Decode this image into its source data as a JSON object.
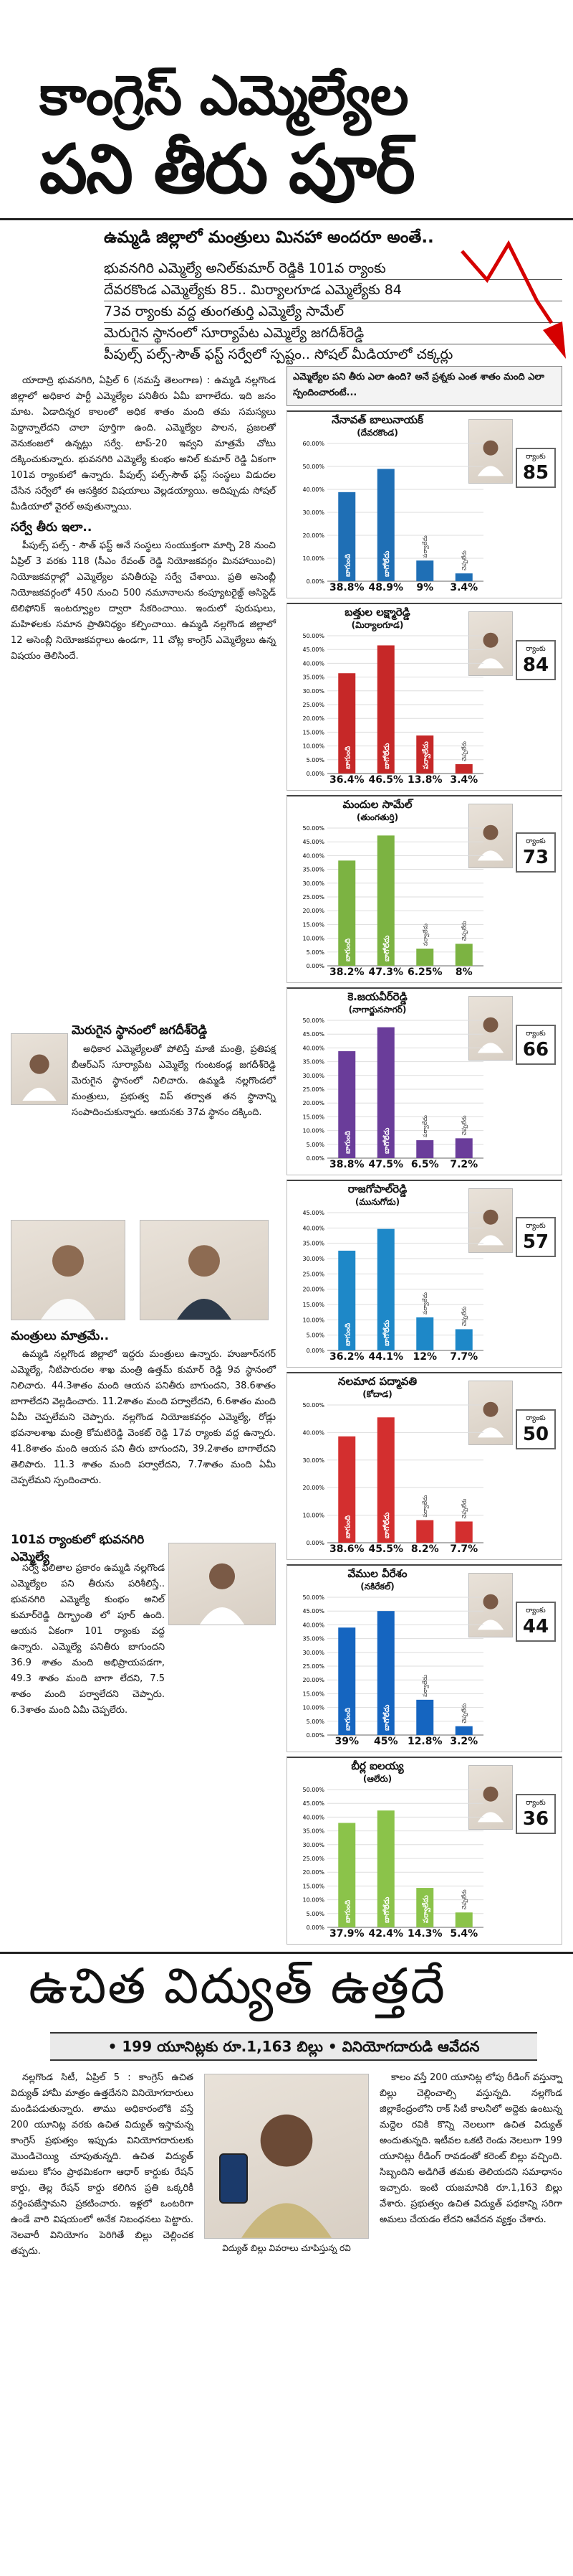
{
  "headline": {
    "line1": "కాంగ్రెస్ ఎమ్మెల్యేల",
    "line2": "పని తీరు పూర్",
    "subheadline": "ఉమ్మడి జిల్లాలో మంత్రులు మినహా అందరూ అంతే..",
    "lead": [
      "భువనగిరి ఎమ్మెల్యే అనిల్‌కుమార్ రెడ్డికి 101వ ర్యాంకు",
      "దేవరకొండ ఎమ్మెల్యేకు 85.. మిర్యాలగూడ ఎమ్మెల్యేకు 84",
      "73వ ర్యాంకు వద్ద తుంగతుర్తి ఎమ్మెల్యే సామేల్",
      "మెరుగైన స్థానంలో సూర్యాపేట ఎమ్మెల్యే జగదీశ్‌రెడ్డి",
      "పీపుల్స్ పల్స్-సౌత్ ఫస్ట్ సర్వేలో స్పష్టం.. సోషల్ మీడియాలో చక్కర్లు"
    ]
  },
  "article": {
    "dateline": "యాదాద్రి భువనగిరి, ఏప్రిల్ 6 (నమస్తే తెలంగాణ) : ఉమ్మడి నల్లగొండ జిల్లాలో అధికార పార్టీ ఎమ్మెల్యేల పనితీరు ఏమీ బాగాలేదు. ఇది జనం మాట. ఏడాదిన్నర కాలంలో అధిక శాతం మంది తమ సమస్యలు పెద్దాన్నాలేదని చాలా పూర్తిగా ఉంది. ఎమ్మెల్యేల పాలన, ప్రజలతో వెనుకంజలో ఉన్నట్లు సర్వే. టాప్-20 ఇవ్వని మాత్రమే చోటు దక్కించుకున్నారు. భువనగిరి ఎమ్మెల్యే కుంభం అనిల్ కుమార్ రెడ్డి ఏకంగా 101వ ర్యాంకులో ఉన్నారు. పీపుల్స్ పల్స్-సౌత్ ఫస్ట్ సంస్థలు విడుదల చేసిన సర్వేలో ఈ ఆసక్తికర విషయాలు వెల్లడయ్యాయి. అదిప్పుడు సోషల్ మీడియాలో వైరల్ అవుతున్నాయి.",
    "survey_heading": "సర్వే తీరు ఇలా..",
    "survey_text": "పీపుల్స్ పల్స్ - సౌత్ ఫస్ట్ అనే సంస్థలు సంయుక్తంగా మార్చి 28 నుంచి ఏప్రిల్ 3 వరకు 118 (సీఎం రేవంత్ రెడ్డి నియోజకవర్గం మినహాయించి) నియోజకవర్గాల్లో ఎమ్మెల్యేల పనితీరుపై సర్వే చేశాయి. ప్రతి అసెంబ్లీ నియోజకవర్గంలో 450 నుంచి 500 నమూనాలను కంప్యూటరైజ్డ్ అసిస్టెడ్ టెలిఫోనిక్ ఇంటర్వ్యూల ద్వారా సేకరించాయి. ఇందులో పురుషులు, మహిళలకు సమాన ప్రాతినిధ్యం కల్పించాయి. ఉమ్మడి నల్లగొండ జిల్లాలో 12 అసెంబ్లీ నియోజకవర్గాలు ఉండగా, 11 చోట్ల కాంగ్రెస్ ఎమ్మెల్యేలు ఉన్న విషయం తెలిసిందే.",
    "jagadish_heading": "మెరుగైన స్థానంలో జగదీశ్‌రెడ్డి",
    "jagadish_text": "అధికార ఎమ్మెల్యేలతో పోలిస్తే మాజీ మంత్రి, ప్రతిపక్ష బీఆర్‌ఎస్ సూర్యాపేట ఎమ్మెల్యే గుంటకండ్ల జగదీశ్‌రెడ్డి మెరుగైన స్థానంలో నిలిచారు. ఉమ్మడి నల్లగొండలో మంత్రులు, ప్రభుత్వ విప్ తర్వాత తన స్థానాన్ని సంపాదించుకున్నారు. ఆయనకు 37వ స్థానం దక్కింది.",
    "ministers_heading": "మంత్రులు మాత్రమే..",
    "ministers_text": "ఉమ్మడి నల్లగొండ జిల్లాలో ఇద్దరు మంత్రులు ఉన్నారు. హుజూర్‌నగర్ ఎమ్మెల్యే, నీటిపారుదల శాఖ మంత్రి ఉత్తమ్ కుమార్ రెడ్డి 9వ స్థానంలో నిలిచారు. 44.3శాతం మంది ఆయన పనితీరు బాగుందని, 38.6శాతం బాగాలేదని వెల్లడించారు. 11.2శాతం మంది పర్వాలేదని, 6.6శాతం మంది ఏమీ చెప్పలేమని చెప్పారు. నల్లగొండ నియోజకవర్గం ఎమ్మెల్యే, రోడ్లు భవనాలశాఖ మంత్రి కోమటిరెడ్డి వెంకట్ రెడ్డి 17వ ర్యాంకు వద్ద ఉన్నారు. 41.8శాతం మంది ఆయన పని తీరు బాగుందని, 39.2శాతం బాగాలేదని తెలిపారు. 11.3 శాతం మంది పర్వాలేదని, 7.7శాతం మంది ఏమీ చెప్పలేమని స్పందించారు.",
    "bhuvanagiri_heading": "101వ ర్యాంకులో భువనగిరి ఎమ్మెల్యే",
    "bhuvanagiri_text": "సర్వే ఫలితాల ప్రకారం ఉమ్మడి నల్లగొండ ఎమ్మెల్యేల పని తీరును పరిశీలిస్తే.. భువనగిరి ఎమ్మెల్యే కుంభం అనిల్ కుమార్‌రెడ్డి దిగ్భ్రాంతి లో పూర్ ఉంది. ఆయన ఏకంగా 101 ర్యాంకు వద్ద ఉన్నారు. ఎమ్మెల్యే పనితీరు బాగుందని 36.9 శాతం మంది అభిప్రాయపడగా, 49.3 శాతం మంది బాగా లేదని, 7.5 శాతం మంది పర్వాలేదని చెప్పారు. 6.3శాతం మంది ఏమీ చెప్పలేరు."
  },
  "charts_header": "ఎమ్మెల్యేల పని తీరు ఎలా ఉంది? అనే ప్రశ్నకు ఎంత శాతం మంది ఎలా స్పందించారంటే...",
  "rank_label": "ర్యాంకు",
  "bar_labels": [
    "బాగుంది",
    "బాగోలేదు",
    "పర్వాలేదు",
    "చెప్పలేరు"
  ],
  "chart_data": [
    {
      "type": "bar",
      "name": "నేనావత్ బాలునాయక్",
      "constituency": "(దేవరకొండ)",
      "rank": "85",
      "color": "#1f6fb5",
      "ylim": [
        0,
        60
      ],
      "ticks": [
        "0.00%",
        "10.00%",
        "20.00%",
        "30.00%",
        "40.00%",
        "50.00%",
        "60.00%"
      ],
      "categories": [
        "బాగుంది",
        "బాగోలేదు",
        "పర్వాలేదు",
        "చెప్పలేరు"
      ],
      "values": [
        38.8,
        48.9,
        9,
        3.4
      ],
      "labels": [
        "38.8%",
        "48.9%",
        "9%",
        "3.4%"
      ]
    },
    {
      "type": "bar",
      "name": "బత్తుల లక్ష్మారెడ్డి",
      "constituency": "(మిర్యాలగూడ)",
      "rank": "84",
      "color": "#c62828",
      "ylim": [
        0,
        50
      ],
      "ticks": [
        "0.00%",
        "5.00%",
        "10.00%",
        "15.00%",
        "20.00%",
        "25.00%",
        "30.00%",
        "35.00%",
        "40.00%",
        "45.00%",
        "50.00%"
      ],
      "categories": [
        "బాగుంది",
        "బాగోలేదు",
        "పర్వాలేదు",
        "చెప్పలేరు"
      ],
      "values": [
        36.4,
        46.5,
        13.8,
        3.4
      ],
      "labels": [
        "36.4%",
        "46.5%",
        "13.8%",
        "3.4%"
      ]
    },
    {
      "type": "bar",
      "name": "మందుల సామేల్",
      "constituency": "(తుంగతుర్తి)",
      "rank": "73",
      "color": "#7cb342",
      "ylim": [
        0,
        50
      ],
      "ticks": [
        "0.00%",
        "5.00%",
        "10.00%",
        "15.00%",
        "20.00%",
        "25.00%",
        "30.00%",
        "35.00%",
        "40.00%",
        "45.00%",
        "50.00%"
      ],
      "categories": [
        "బాగుంది",
        "బాగోలేదు",
        "పర్వాలేదు",
        "చెప్పలేరు"
      ],
      "values": [
        38.2,
        47.3,
        6.25,
        8
      ],
      "labels": [
        "38.2%",
        "47.3%",
        "6.25%",
        "8%"
      ]
    },
    {
      "type": "bar",
      "name": "కె.జయవీర్‌రెడ్డి",
      "constituency": "(నాగార్జునసాగర్)",
      "rank": "66",
      "color": "#6a3d9a",
      "ylim": [
        0,
        50
      ],
      "ticks": [
        "0.00%",
        "5.00%",
        "10.00%",
        "15.00%",
        "20.00%",
        "25.00%",
        "30.00%",
        "35.00%",
        "40.00%",
        "45.00%",
        "50.00%"
      ],
      "categories": [
        "బాగుంది",
        "బాగోలేదు",
        "పర్వాలేదు",
        "చెప్పలేరు"
      ],
      "values": [
        38.8,
        47.5,
        6.5,
        7.2
      ],
      "labels": [
        "38.8%",
        "47.5%",
        "6.5%",
        "7.2%"
      ]
    },
    {
      "type": "bar",
      "name": "రాజగోపాల్‌రెడ్డి",
      "constituency": "(మునుగోడు)",
      "rank": "57",
      "color": "#1e88c8",
      "ylim": [
        0,
        50
      ],
      "ticks": [
        "0.00%",
        "5.00%",
        "10.00%",
        "15.00%",
        "20.00%",
        "25.00%",
        "30.00%",
        "35.00%",
        "40.00%",
        "45.00%"
      ],
      "categories": [
        "బాగుంది",
        "బాగోలేదు",
        "పర్వాలేదు",
        "చెప్పలేరు"
      ],
      "values": [
        36.2,
        44.1,
        12,
        7.7
      ],
      "labels": [
        "36.2%",
        "44.1%",
        "12%",
        "7.7%"
      ]
    },
    {
      "type": "bar",
      "name": "నలమాద పద్మావతి",
      "constituency": "(కోదాడ)",
      "rank": "50",
      "color": "#d32f2f",
      "ylim": [
        0,
        50
      ],
      "ticks": [
        "0.00%",
        "10.00%",
        "20.00%",
        "30.00%",
        "40.00%",
        "50.00%"
      ],
      "categories": [
        "బాగుంది",
        "బాగోలేదు",
        "పర్వాలేదు",
        "చెప్పలేరు"
      ],
      "values": [
        38.6,
        45.5,
        8.2,
        7.7
      ],
      "labels": [
        "38.6%",
        "45.5%",
        "8.2%",
        "7.7%"
      ]
    },
    {
      "type": "bar",
      "name": "వేముల వీరేశం",
      "constituency": "(నకిరేకల్)",
      "rank": "44",
      "color": "#1565c0",
      "ylim": [
        0,
        50
      ],
      "ticks": [
        "0.00%",
        "5.00%",
        "10.00%",
        "15.00%",
        "20.00%",
        "25.00%",
        "30.00%",
        "35.00%",
        "40.00%",
        "45.00%",
        "50.00%"
      ],
      "categories": [
        "బాగుంది",
        "బాగోలేదు",
        "పర్వాలేదు",
        "చెప్పలేరు"
      ],
      "values": [
        39,
        45,
        12.8,
        3.2
      ],
      "labels": [
        "39%",
        "45%",
        "12.8%",
        "3.2%"
      ]
    },
    {
      "type": "bar",
      "name": "బీర్ల ఐలయ్య",
      "constituency": "(ఆలేరు)",
      "rank": "36",
      "color": "#8bc34a",
      "ylim": [
        0,
        50
      ],
      "ticks": [
        "0.00%",
        "5.00%",
        "10.00%",
        "15.00%",
        "20.00%",
        "25.00%",
        "30.00%",
        "35.00%",
        "40.00%",
        "45.00%",
        "50.00%"
      ],
      "categories": [
        "బాగుంది",
        "బాగోలేదు",
        "పర్వాలేదు",
        "చెప్పలేరు"
      ],
      "values": [
        37.9,
        42.4,
        14.3,
        5.4
      ],
      "labels": [
        "37.9%",
        "42.4%",
        "14.3%",
        "5.4%"
      ]
    }
  ],
  "story2": {
    "headline": "ఉచిత విద్యుత్ ఉత్తదే",
    "subheadline": "• 199 యూనిట్లకు రూ.1,163 బిల్లు • వినియోగదారుడి ఆవేదన",
    "col1": "నల్లగొండ సిటీ, ఏప్రిల్ 5 : కాంగ్రెస్ ఉచిత విద్యుత్ హామీ మాత్రం ఉత్తదేనని వినియోగదారులు మండిపడుతున్నారు. తాము అధికారంలోకి వస్తే 200 యూనిట్ల వరకు ఉచిత విద్యుత్ ఇస్తామన్న కాంగ్రెస్ ప్రభుత్వం ఇప్పుడు వినియోగదారులకు మొండిచెయ్యి చూపుతున్నది. ఉచిత విద్యుత్ అమలు కోసం ప్రాథమికంగా ఆధార్ కార్డుకు రేషన్ కార్డు, తెల్ల రేషన్ కార్డు కలిగిన ప్రతి ఒక్కరికీ వర్తింపజేస్తామని ప్రకటించారు. ఇళ్లలో ఒంటరిగా ఉండే వారి విషయంలో అనేక నిబంధనలు పెట్టారు. నెలవారీ వినియోగం పెరిగితే బిల్లు చెల్లించక తప్పదు.",
    "caption": "విద్యుత్ బిల్లు వివరాలు చూపిస్తున్న రవి",
    "col3": "కాలం వస్తే 200 యూనిట్ల లోపు రీడింగ్ వస్తున్నా బిల్లు చెల్లించాల్సి వస్తున్నది. నల్లగొండ జిల్లాకేంద్రంలోని రాక్ సిటీ కాలనీలో అద్దెకు ఉంటున్న మద్దెల రవికి కొన్ని నెలలుగా ఉచిత విద్యుత్ అందుతున్నది. ఇటీవల ఒకటి రెండు నెలలుగా 199 యూనిట్లు రీడింగ్ రావడంతో కరెంట్ బిల్లు వచ్చింది. సిబ్బందిని అడిగితే తమకు తెలియదని సమాధానం ఇచ్చారు. ఇంటి యజమానికి రూ.1,163 బిల్లు వేశారు. ప్రభుత్వం ఉచిత విద్యుత్ పథకాన్ని సరిగా అమలు చేయడం లేదని ఆవేదన వ్యక్తం చేశారు."
  }
}
